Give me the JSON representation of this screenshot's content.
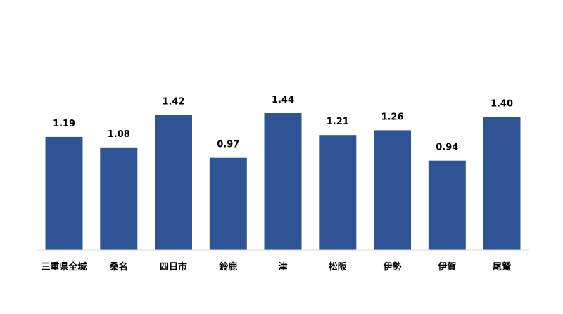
{
  "chart_data": {
    "type": "bar",
    "categories": [
      "三重県全域",
      "桑名",
      "四日市",
      "鈴鹿",
      "津",
      "松阪",
      "伊勢",
      "伊賀",
      "尾鷲"
    ],
    "values": [
      1.19,
      1.08,
      1.42,
      0.97,
      1.44,
      1.21,
      1.26,
      0.94,
      1.4
    ],
    "value_labels": [
      "1.19",
      "1.08",
      "1.42",
      "0.97",
      "1.44",
      "1.21",
      "1.26",
      "0.94",
      "1.40"
    ],
    "title": "",
    "xlabel": "",
    "ylabel": "",
    "ylim": [
      0,
      1.6
    ],
    "grid": false,
    "legend": "none",
    "bar_color": "#2e5496",
    "axis_color": "#d9d9d9"
  }
}
